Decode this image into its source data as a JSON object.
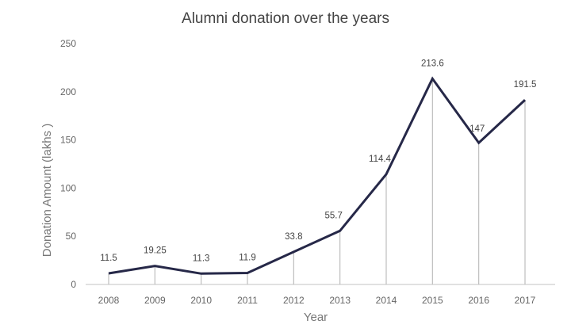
{
  "chart_data": {
    "type": "line",
    "title": "Alumni donation over the years",
    "xlabel": "Year",
    "ylabel": "Donation Amount (lakhs )",
    "categories": [
      "2008",
      "2009",
      "2010",
      "2011",
      "2012",
      "2013",
      "2014",
      "2015",
      "2016",
      "2017"
    ],
    "values": [
      11.5,
      19.25,
      11.3,
      11.9,
      33.8,
      55.7,
      114.4,
      213.6,
      147,
      191.5
    ],
    "data_labels": [
      "11.5",
      "19.25",
      "11.3",
      "11.9",
      "33.8",
      "55.7",
      "114.4",
      "213.6",
      "147",
      "191.5"
    ],
    "yticks": [
      "0",
      "50",
      "100",
      "150",
      "200",
      "250"
    ],
    "ylim": [
      0,
      250
    ],
    "grid": false,
    "drop_lines": true,
    "line_color": "#262848",
    "drop_line_color": "#bdbdbd"
  }
}
